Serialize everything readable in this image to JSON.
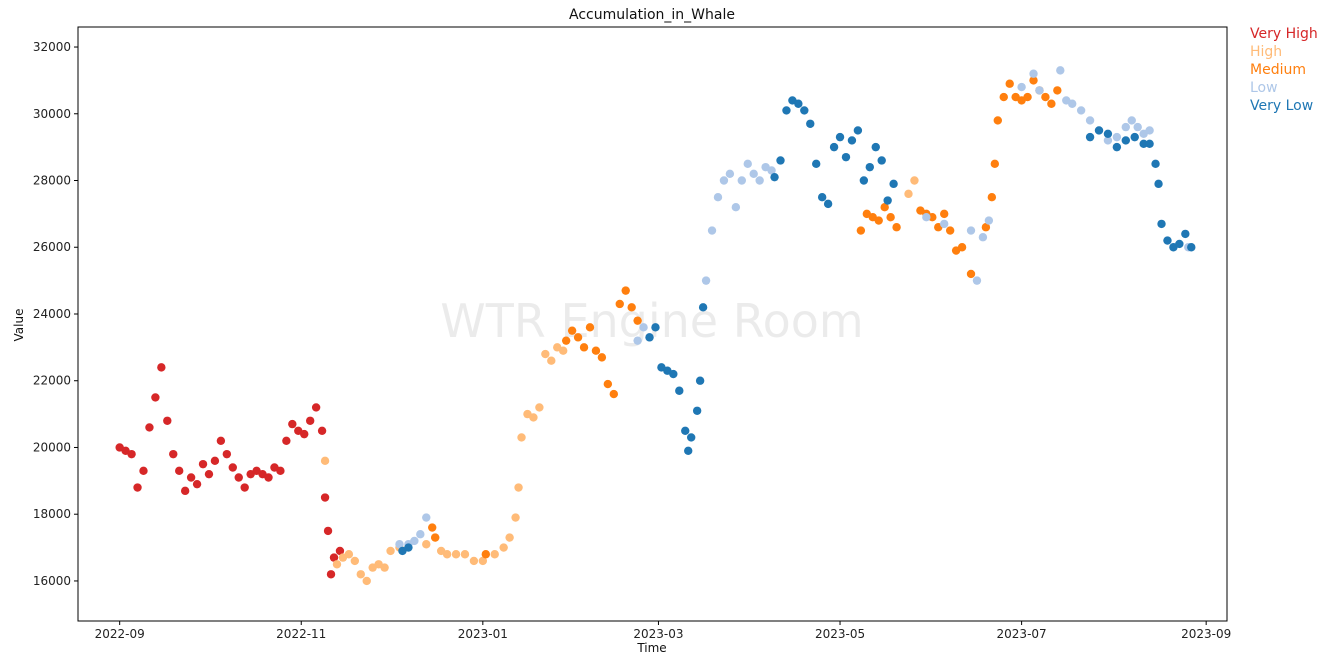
{
  "chart_data": {
    "type": "scatter",
    "title": "Accumulation_in_Whale",
    "xlabel": "Time",
    "ylabel": "Value",
    "watermark": "WTR Engine Room",
    "xlim": [
      "2022-08-18",
      "2023-09-08"
    ],
    "ylim": [
      14800,
      32600
    ],
    "x_ticks": [
      "2022-09-01",
      "2022-11-01",
      "2023-01-01",
      "2023-03-01",
      "2023-05-01",
      "2023-07-01",
      "2023-09-01"
    ],
    "x_tick_labels": [
      "2022-09",
      "2022-11",
      "2023-01",
      "2023-03",
      "2023-05",
      "2023-07",
      "2023-09"
    ],
    "y_ticks": [
      16000,
      18000,
      20000,
      22000,
      24000,
      26000,
      28000,
      30000,
      32000
    ],
    "legend_position": "outside-top-right",
    "series": [
      {
        "name": "Very High",
        "color": "#d62728",
        "points": [
          [
            "2022-09-01",
            20000
          ],
          [
            "2022-09-03",
            19900
          ],
          [
            "2022-09-05",
            19800
          ],
          [
            "2022-09-07",
            18800
          ],
          [
            "2022-09-09",
            19300
          ],
          [
            "2022-09-11",
            20600
          ],
          [
            "2022-09-13",
            21500
          ],
          [
            "2022-09-15",
            22400
          ],
          [
            "2022-09-17",
            20800
          ],
          [
            "2022-09-19",
            19800
          ],
          [
            "2022-09-21",
            19300
          ],
          [
            "2022-09-23",
            18700
          ],
          [
            "2022-09-25",
            19100
          ],
          [
            "2022-09-27",
            18900
          ],
          [
            "2022-09-29",
            19500
          ],
          [
            "2022-10-01",
            19200
          ],
          [
            "2022-10-03",
            19600
          ],
          [
            "2022-10-05",
            20200
          ],
          [
            "2022-10-07",
            19800
          ],
          [
            "2022-10-09",
            19400
          ],
          [
            "2022-10-11",
            19100
          ],
          [
            "2022-10-13",
            18800
          ],
          [
            "2022-10-15",
            19200
          ],
          [
            "2022-10-17",
            19300
          ],
          [
            "2022-10-19",
            19200
          ],
          [
            "2022-10-21",
            19100
          ],
          [
            "2022-10-23",
            19400
          ],
          [
            "2022-10-25",
            19300
          ],
          [
            "2022-10-27",
            20200
          ],
          [
            "2022-10-29",
            20700
          ],
          [
            "2022-10-31",
            20500
          ],
          [
            "2022-11-02",
            20400
          ],
          [
            "2022-11-04",
            20800
          ],
          [
            "2022-11-06",
            21200
          ],
          [
            "2022-11-08",
            20500
          ],
          [
            "2022-11-09",
            18500
          ],
          [
            "2022-11-10",
            17500
          ],
          [
            "2022-11-11",
            16200
          ],
          [
            "2022-11-12",
            16700
          ],
          [
            "2022-11-14",
            16900
          ]
        ]
      },
      {
        "name": "High",
        "color": "#ffbb78",
        "points": [
          [
            "2022-11-09",
            19600
          ],
          [
            "2022-11-13",
            16500
          ],
          [
            "2022-11-15",
            16700
          ],
          [
            "2022-11-17",
            16800
          ],
          [
            "2022-11-19",
            16600
          ],
          [
            "2022-11-21",
            16200
          ],
          [
            "2022-11-23",
            16000
          ],
          [
            "2022-11-25",
            16400
          ],
          [
            "2022-11-27",
            16500
          ],
          [
            "2022-11-29",
            16400
          ],
          [
            "2022-12-01",
            16900
          ],
          [
            "2022-12-04",
            17000
          ],
          [
            "2022-12-13",
            17100
          ],
          [
            "2022-12-16",
            17300
          ],
          [
            "2022-12-18",
            16900
          ],
          [
            "2022-12-20",
            16800
          ],
          [
            "2022-12-23",
            16800
          ],
          [
            "2022-12-26",
            16800
          ],
          [
            "2022-12-29",
            16600
          ],
          [
            "2023-01-01",
            16600
          ],
          [
            "2023-01-05",
            16800
          ],
          [
            "2023-01-08",
            17000
          ],
          [
            "2023-01-10",
            17300
          ],
          [
            "2023-01-12",
            17900
          ],
          [
            "2023-01-13",
            18800
          ],
          [
            "2023-01-14",
            20300
          ],
          [
            "2023-01-16",
            21000
          ],
          [
            "2023-01-18",
            20900
          ],
          [
            "2023-01-20",
            21200
          ],
          [
            "2023-01-22",
            22800
          ],
          [
            "2023-01-24",
            22600
          ],
          [
            "2023-01-26",
            23000
          ],
          [
            "2023-01-28",
            22900
          ],
          [
            "2023-05-24",
            27600
          ],
          [
            "2023-05-26",
            28000
          ]
        ]
      },
      {
        "name": "Medium",
        "color": "#ff7f0e",
        "points": [
          [
            "2022-12-15",
            17600
          ],
          [
            "2022-12-16",
            17300
          ],
          [
            "2023-01-02",
            16800
          ],
          [
            "2023-01-29",
            23200
          ],
          [
            "2023-01-31",
            23500
          ],
          [
            "2023-02-02",
            23300
          ],
          [
            "2023-02-04",
            23000
          ],
          [
            "2023-02-06",
            23600
          ],
          [
            "2023-02-08",
            22900
          ],
          [
            "2023-02-10",
            22700
          ],
          [
            "2023-02-12",
            21900
          ],
          [
            "2023-02-14",
            21600
          ],
          [
            "2023-02-16",
            24300
          ],
          [
            "2023-02-18",
            24700
          ],
          [
            "2023-02-20",
            24200
          ],
          [
            "2023-02-22",
            23800
          ],
          [
            "2023-05-08",
            26500
          ],
          [
            "2023-05-10",
            27000
          ],
          [
            "2023-05-12",
            26900
          ],
          [
            "2023-05-14",
            26800
          ],
          [
            "2023-05-16",
            27200
          ],
          [
            "2023-05-18",
            26900
          ],
          [
            "2023-05-20",
            26600
          ],
          [
            "2023-05-28",
            27100
          ],
          [
            "2023-05-30",
            27000
          ],
          [
            "2023-06-01",
            26900
          ],
          [
            "2023-06-03",
            26600
          ],
          [
            "2023-06-05",
            27000
          ],
          [
            "2023-06-07",
            26500
          ],
          [
            "2023-06-09",
            25900
          ],
          [
            "2023-06-11",
            26000
          ],
          [
            "2023-06-14",
            25200
          ],
          [
            "2023-06-19",
            26600
          ],
          [
            "2023-06-21",
            27500
          ],
          [
            "2023-06-22",
            28500
          ],
          [
            "2023-06-23",
            29800
          ],
          [
            "2023-06-25",
            30500
          ],
          [
            "2023-06-27",
            30900
          ],
          [
            "2023-06-29",
            30500
          ],
          [
            "2023-07-01",
            30400
          ],
          [
            "2023-07-03",
            30500
          ],
          [
            "2023-07-05",
            31000
          ],
          [
            "2023-07-07",
            30700
          ],
          [
            "2023-07-09",
            30500
          ],
          [
            "2023-07-11",
            30300
          ],
          [
            "2023-07-13",
            30700
          ]
        ]
      },
      {
        "name": "Low",
        "color": "#aec7e8",
        "points": [
          [
            "2022-12-04",
            17100
          ],
          [
            "2022-12-07",
            17100
          ],
          [
            "2022-12-09",
            17200
          ],
          [
            "2022-12-11",
            17400
          ],
          [
            "2022-12-13",
            17900
          ],
          [
            "2023-02-22",
            23200
          ],
          [
            "2023-02-24",
            23600
          ],
          [
            "2023-02-26",
            23300
          ],
          [
            "2023-03-17",
            25000
          ],
          [
            "2023-03-19",
            26500
          ],
          [
            "2023-03-21",
            27500
          ],
          [
            "2023-03-23",
            28000
          ],
          [
            "2023-03-25",
            28200
          ],
          [
            "2023-03-27",
            27200
          ],
          [
            "2023-03-29",
            28000
          ],
          [
            "2023-03-31",
            28500
          ],
          [
            "2023-04-02",
            28200
          ],
          [
            "2023-04-04",
            28000
          ],
          [
            "2023-04-06",
            28400
          ],
          [
            "2023-04-08",
            28300
          ],
          [
            "2023-05-30",
            26900
          ],
          [
            "2023-06-05",
            26700
          ],
          [
            "2023-06-14",
            26500
          ],
          [
            "2023-06-16",
            25000
          ],
          [
            "2023-06-18",
            26300
          ],
          [
            "2023-06-20",
            26800
          ],
          [
            "2023-07-01",
            30800
          ],
          [
            "2023-07-05",
            31200
          ],
          [
            "2023-07-07",
            30700
          ],
          [
            "2023-07-14",
            31300
          ],
          [
            "2023-07-16",
            30400
          ],
          [
            "2023-07-18",
            30300
          ],
          [
            "2023-07-21",
            30100
          ],
          [
            "2023-07-24",
            29800
          ],
          [
            "2023-07-27",
            29500
          ],
          [
            "2023-07-30",
            29200
          ],
          [
            "2023-08-02",
            29300
          ],
          [
            "2023-08-05",
            29600
          ],
          [
            "2023-08-07",
            29800
          ],
          [
            "2023-08-09",
            29600
          ],
          [
            "2023-08-11",
            29400
          ],
          [
            "2023-08-13",
            29500
          ],
          [
            "2023-08-26",
            26000
          ]
        ]
      },
      {
        "name": "Very Low",
        "color": "#1f77b4",
        "points": [
          [
            "2022-12-05",
            16900
          ],
          [
            "2022-12-07",
            17000
          ],
          [
            "2023-02-26",
            23300
          ],
          [
            "2023-02-28",
            23600
          ],
          [
            "2023-03-02",
            22400
          ],
          [
            "2023-03-04",
            22300
          ],
          [
            "2023-03-06",
            22200
          ],
          [
            "2023-03-08",
            21700
          ],
          [
            "2023-03-10",
            20500
          ],
          [
            "2023-03-11",
            19900
          ],
          [
            "2023-03-12",
            20300
          ],
          [
            "2023-03-14",
            21100
          ],
          [
            "2023-03-15",
            22000
          ],
          [
            "2023-03-16",
            24200
          ],
          [
            "2023-04-09",
            28100
          ],
          [
            "2023-04-11",
            28600
          ],
          [
            "2023-04-13",
            30100
          ],
          [
            "2023-04-15",
            30400
          ],
          [
            "2023-04-17",
            30300
          ],
          [
            "2023-04-19",
            30100
          ],
          [
            "2023-04-21",
            29700
          ],
          [
            "2023-04-23",
            28500
          ],
          [
            "2023-04-25",
            27500
          ],
          [
            "2023-04-27",
            27300
          ],
          [
            "2023-04-29",
            29000
          ],
          [
            "2023-05-01",
            29300
          ],
          [
            "2023-05-03",
            28700
          ],
          [
            "2023-05-05",
            29200
          ],
          [
            "2023-05-07",
            29500
          ],
          [
            "2023-05-09",
            28000
          ],
          [
            "2023-05-11",
            28400
          ],
          [
            "2023-05-13",
            29000
          ],
          [
            "2023-05-15",
            28600
          ],
          [
            "2023-05-17",
            27400
          ],
          [
            "2023-05-19",
            27900
          ],
          [
            "2023-07-24",
            29300
          ],
          [
            "2023-07-27",
            29500
          ],
          [
            "2023-07-30",
            29400
          ],
          [
            "2023-08-02",
            29000
          ],
          [
            "2023-08-05",
            29200
          ],
          [
            "2023-08-08",
            29300
          ],
          [
            "2023-08-11",
            29100
          ],
          [
            "2023-08-13",
            29100
          ],
          [
            "2023-08-15",
            28500
          ],
          [
            "2023-08-16",
            27900
          ],
          [
            "2023-08-17",
            26700
          ],
          [
            "2023-08-19",
            26200
          ],
          [
            "2023-08-21",
            26000
          ],
          [
            "2023-08-23",
            26100
          ],
          [
            "2023-08-25",
            26400
          ],
          [
            "2023-08-27",
            26000
          ]
        ]
      }
    ]
  }
}
